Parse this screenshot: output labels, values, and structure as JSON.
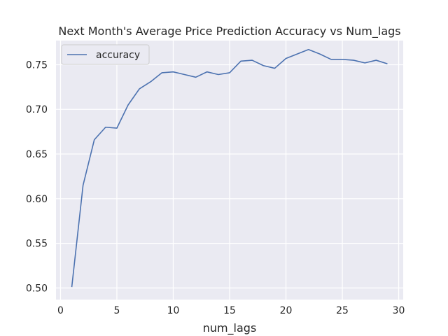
{
  "chart_data": {
    "type": "line",
    "title": "Next Month's Average Price Prediction Accuracy vs Num_lags",
    "xlabel": "num_lags",
    "ylabel": "",
    "xlim": [
      -0.4,
      30.4
    ],
    "ylim": [
      0.487,
      0.777
    ],
    "x_ticks": [
      0,
      5,
      10,
      15,
      20,
      25,
      30
    ],
    "y_ticks": [
      0.5,
      0.55,
      0.6,
      0.65,
      0.7,
      0.75
    ],
    "x_tick_labels": [
      "0",
      "5",
      "10",
      "15",
      "20",
      "25",
      "30"
    ],
    "y_tick_labels": [
      "0.50",
      "0.55",
      "0.60",
      "0.65",
      "0.70",
      "0.75"
    ],
    "grid": true,
    "legend_position": "upper-left",
    "series": [
      {
        "name": "accuracy",
        "color": "#4c72b0",
        "x": [
          1,
          2,
          3,
          4,
          5,
          6,
          7,
          8,
          9,
          10,
          11,
          12,
          13,
          14,
          15,
          16,
          17,
          18,
          19,
          20,
          21,
          22,
          23,
          24,
          25,
          26,
          27,
          28,
          29
        ],
        "y": [
          0.501,
          0.615,
          0.666,
          0.68,
          0.679,
          0.705,
          0.723,
          0.731,
          0.741,
          0.742,
          0.739,
          0.736,
          0.742,
          0.739,
          0.741,
          0.754,
          0.755,
          0.749,
          0.746,
          0.757,
          0.762,
          0.767,
          0.762,
          0.756,
          0.756,
          0.755,
          0.752,
          0.755,
          0.751
        ]
      }
    ]
  }
}
